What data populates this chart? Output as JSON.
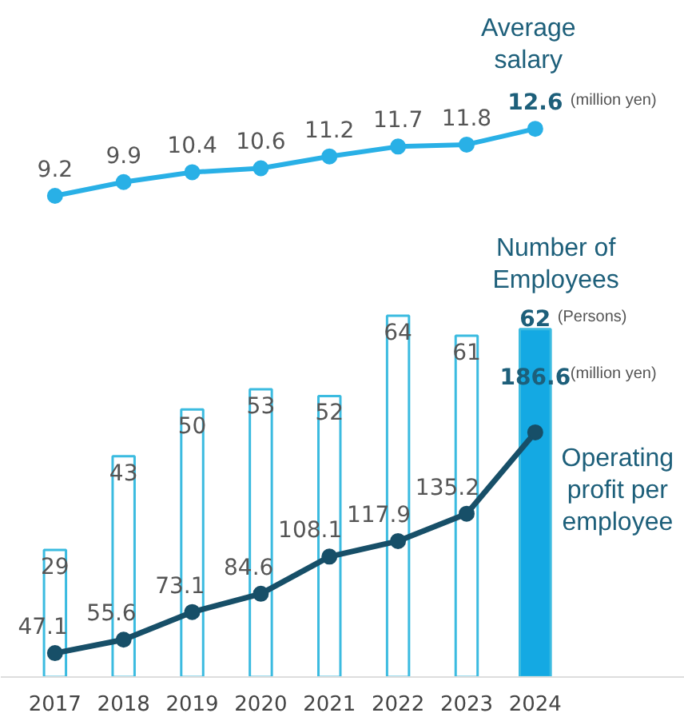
{
  "chart_data": [
    {
      "type": "line",
      "categories": [
        "2017",
        "2018",
        "2019",
        "2020",
        "2021",
        "2022",
        "2023",
        "2024"
      ],
      "series": [
        {
          "name": "Average salary",
          "color": "#29b0e6",
          "values": [
            9.2,
            9.9,
            10.4,
            10.6,
            11.2,
            11.7,
            11.8,
            12.6
          ]
        }
      ],
      "ylim": [
        8.55,
        19.1
      ],
      "tick_labels": false,
      "data_labels": true,
      "marker": "circle",
      "line_style": "solid",
      "annotations": [
        "(million yen)"
      ]
    },
    {
      "type": "bar",
      "categories": [
        "2017",
        "2018",
        "2019",
        "2020",
        "2021",
        "2022",
        "2023",
        "2024"
      ],
      "series": [
        {
          "name": "Number of Employees",
          "color": "#3bbbe0",
          "colors": [
            "#ffffff",
            "#ffffff",
            "#ffffff",
            "#ffffff",
            "#ffffff",
            "#ffffff",
            "#ffffff",
            "#14a9e3"
          ],
          "values": [
            29,
            43,
            50,
            53,
            52,
            64,
            61,
            62
          ]
        },
        {
          "name": "Operating profit per employee",
          "type": "line",
          "axis": "y2",
          "color": "#174f68",
          "values": [
            47.1,
            55.6,
            73.1,
            84.6,
            108.1,
            117.9,
            135.2,
            186.6
          ]
        }
      ],
      "ylim": [
        10,
        80
      ],
      "y2lim": [
        32,
        328
      ],
      "tick_labels": "x",
      "data_labels": true,
      "marker": "circle",
      "line_style": "solid",
      "annotations": [
        "(Persons)",
        "(million yen)"
      ]
    }
  ]
}
